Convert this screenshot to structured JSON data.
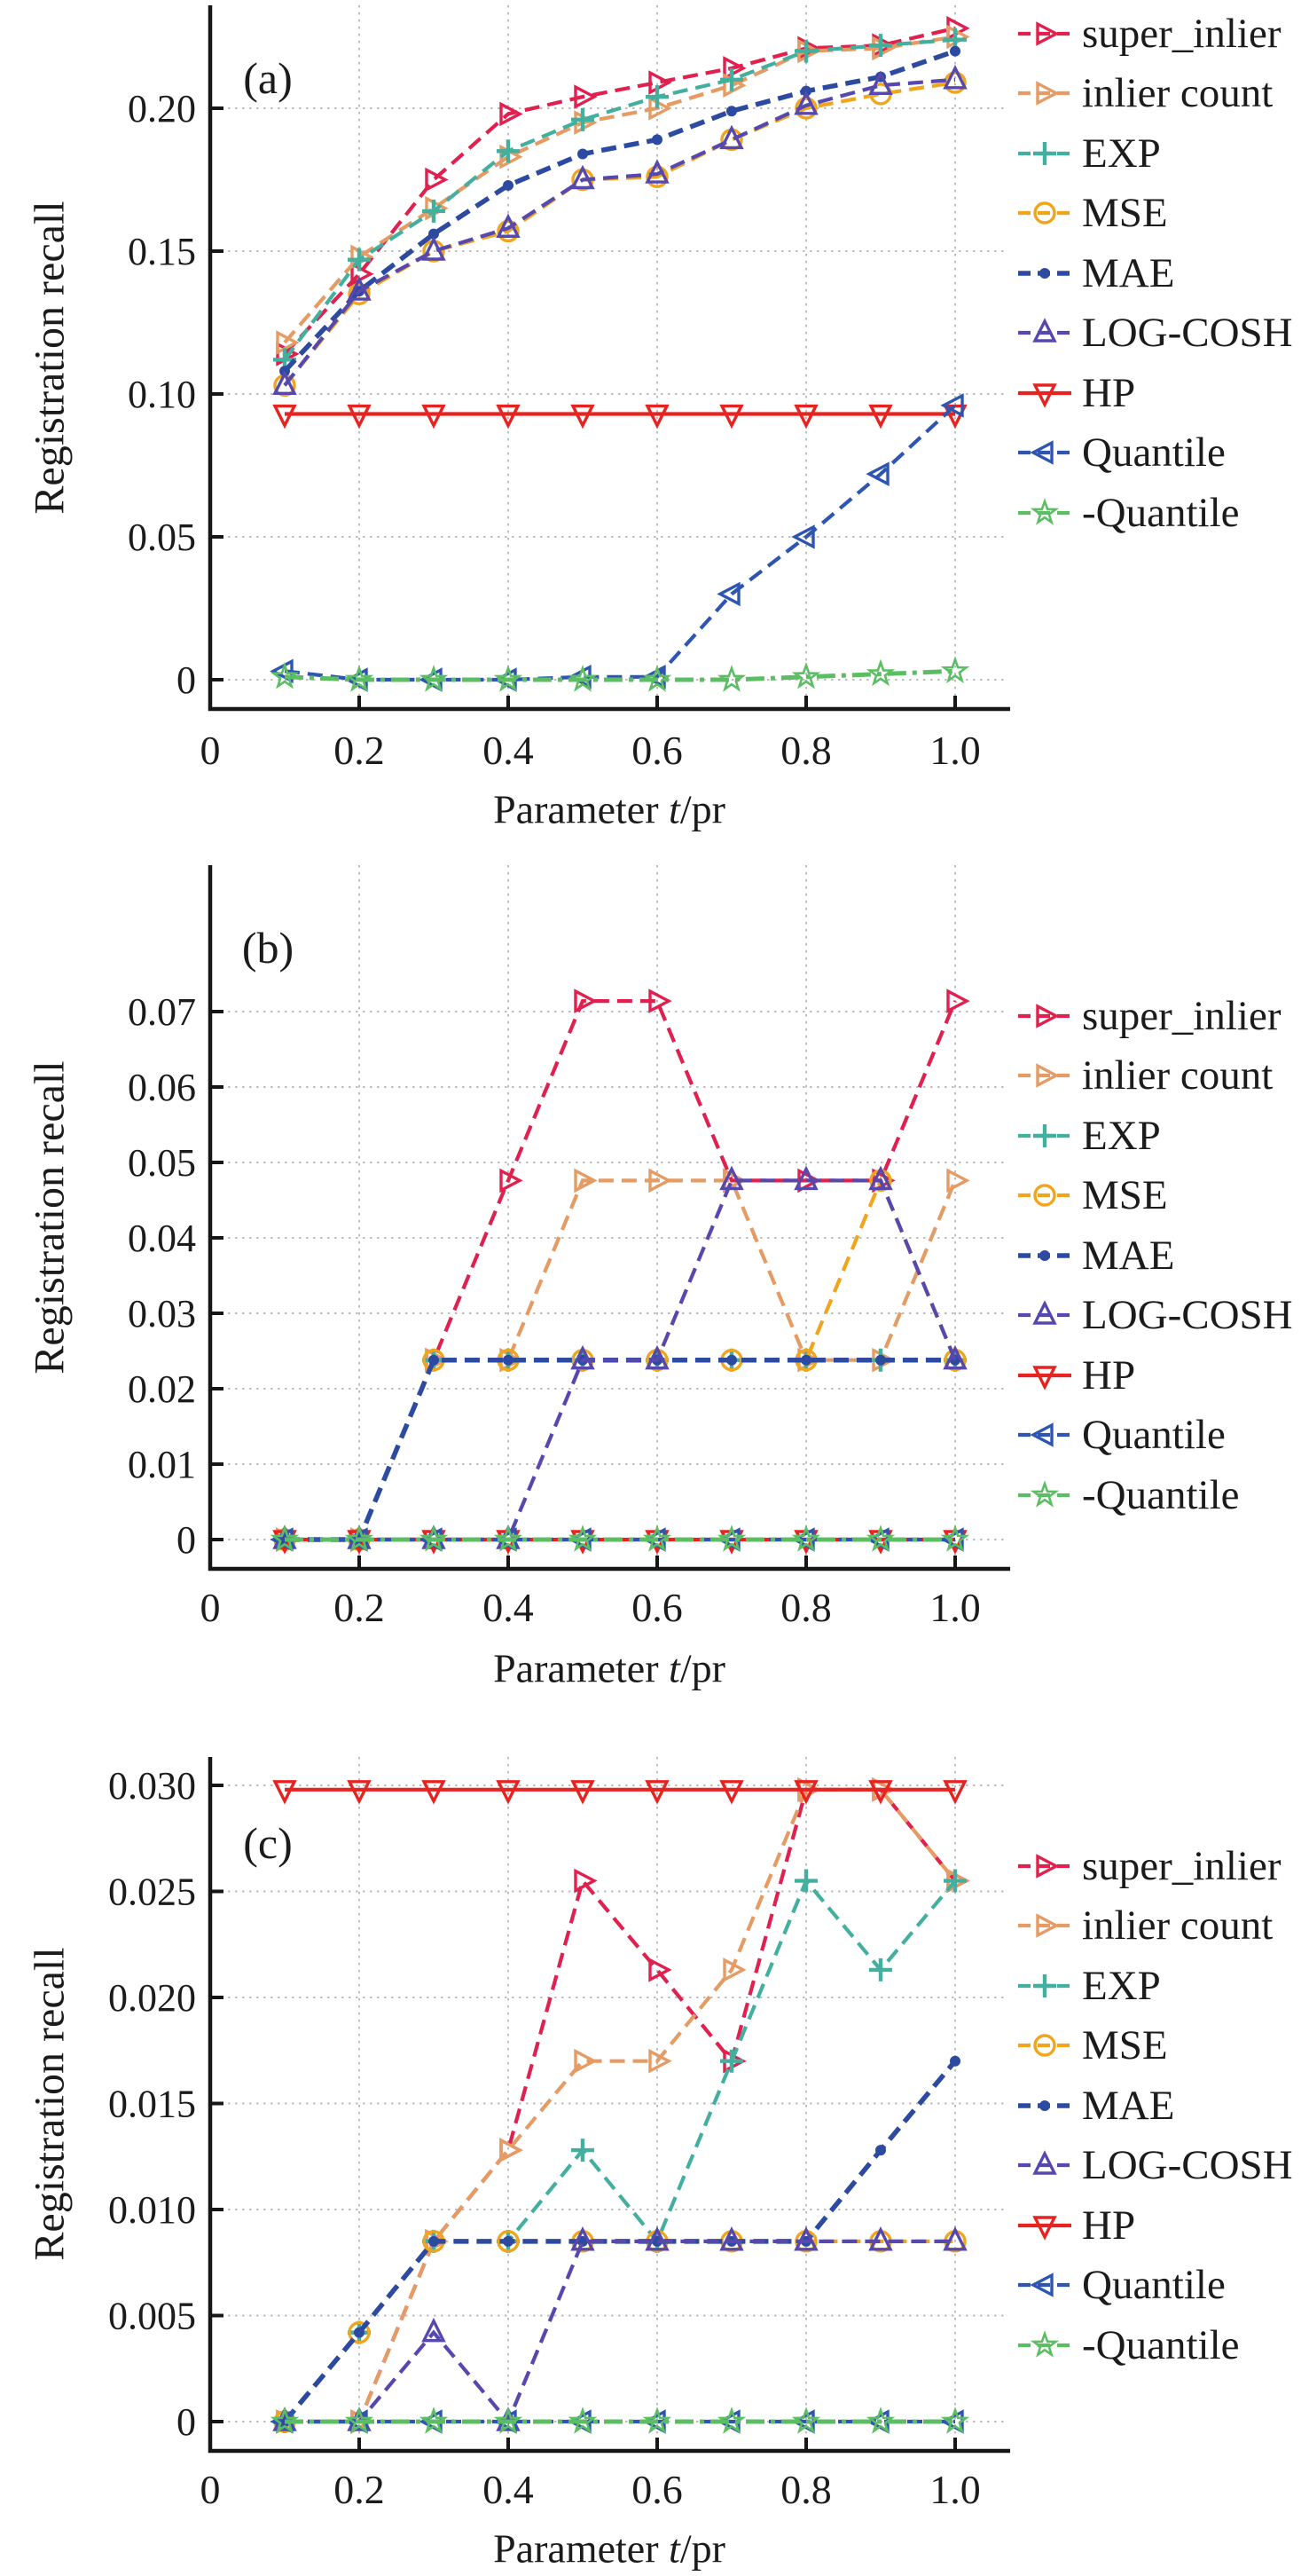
{
  "figure": {
    "ylabel": "Registration recall",
    "xlabel": "Parameter t/pr"
  },
  "chart_data": [
    {
      "type": "line",
      "panel_label": "(a)",
      "ylabel": "Registration recall",
      "xlabel": "Parameter t/pr",
      "xlabel_parts": [
        "Parameter ",
        "t",
        "/pr"
      ],
      "grid": true,
      "legend_position": "right",
      "x": [
        0.1,
        0.2,
        0.3,
        0.4,
        0.5,
        0.6,
        0.7,
        0.8,
        0.9,
        1.0
      ],
      "xticks": [
        0,
        0.2,
        0.4,
        0.6,
        0.8,
        1.0
      ],
      "xtick_labels": [
        "0",
        "0.2",
        "0.4",
        "0.6",
        "0.8",
        "1.0"
      ],
      "ylim": [
        0,
        0.236
      ],
      "yticks": [
        0,
        0.05,
        0.1,
        0.15,
        0.2
      ],
      "ytick_labels": [
        "0",
        "0.05",
        "0.10",
        "0.15",
        "0.20"
      ],
      "series": [
        {
          "name": "super_inlier",
          "color": "#e0204e",
          "marker": "triangle-right",
          "linestyle": "dashed",
          "values": [
            0.114,
            0.142,
            0.175,
            0.198,
            0.204,
            0.209,
            0.214,
            0.221,
            0.222,
            0.228
          ]
        },
        {
          "name": "inlier count",
          "color": "#e59b64",
          "marker": "triangle-right",
          "linestyle": "dashed",
          "values": [
            0.118,
            0.148,
            0.165,
            0.183,
            0.195,
            0.2,
            0.208,
            0.22,
            0.221,
            0.225
          ]
        },
        {
          "name": "EXP",
          "color": "#43af9f",
          "marker": "plus",
          "linestyle": "dashed",
          "values": [
            0.112,
            0.147,
            0.164,
            0.185,
            0.196,
            0.204,
            0.21,
            0.22,
            0.222,
            0.224
          ]
        },
        {
          "name": "MSE",
          "color": "#f0a51d",
          "marker": "circle",
          "linestyle": "dashed",
          "values": [
            0.103,
            0.135,
            0.15,
            0.157,
            0.175,
            0.176,
            0.189,
            0.2,
            0.205,
            0.209
          ]
        },
        {
          "name": "MAE",
          "color": "#2c4aa0",
          "marker": "dot",
          "linestyle": "dashed",
          "values": [
            0.108,
            0.136,
            0.156,
            0.173,
            0.184,
            0.189,
            0.199,
            0.206,
            0.211,
            0.22
          ]
        },
        {
          "name": "LOG-COSH",
          "color": "#5748ae",
          "marker": "triangle-up",
          "linestyle": "dashed",
          "values": [
            0.103,
            0.136,
            0.15,
            0.158,
            0.175,
            0.177,
            0.189,
            0.201,
            0.208,
            0.21
          ]
        },
        {
          "name": "HP",
          "color": "#e62320",
          "marker": "triangle-down",
          "linestyle": "solid",
          "values": [
            0.093,
            0.093,
            0.093,
            0.093,
            0.093,
            0.093,
            0.093,
            0.093,
            0.093,
            0.093
          ]
        },
        {
          "name": "Quantile",
          "color": "#2e56b1",
          "marker": "triangle-left",
          "linestyle": "dashed",
          "values": [
            0.003,
            0.0,
            0.0,
            0.0,
            0.001,
            0.001,
            0.03,
            0.05,
            0.072,
            0.096
          ]
        },
        {
          "name": "-Quantile",
          "color": "#5cbe63",
          "marker": "star",
          "linestyle": "dashdot",
          "values": [
            0.001,
            0.0,
            0.0,
            0.0,
            0.0,
            0.0,
            0.0,
            0.001,
            0.002,
            0.003
          ]
        }
      ]
    },
    {
      "type": "line",
      "panel_label": "(b)",
      "ylabel": "Registration recall",
      "xlabel": "Parameter t/pr",
      "xlabel_parts": [
        "Parameter ",
        "t",
        "/pr"
      ],
      "grid": true,
      "legend_position": "right",
      "x": [
        0.1,
        0.2,
        0.3,
        0.4,
        0.5,
        0.6,
        0.7,
        0.8,
        0.9,
        1.0
      ],
      "xticks": [
        0,
        0.2,
        0.4,
        0.6,
        0.8,
        1.0
      ],
      "xtick_labels": [
        "0",
        "0.2",
        "0.4",
        "0.6",
        "0.8",
        "1.0"
      ],
      "ylim": [
        0,
        0.089
      ],
      "yticks": [
        0,
        0.01,
        0.02,
        0.03,
        0.04,
        0.05,
        0.06,
        0.07
      ],
      "ytick_labels": [
        "0",
        "0.01",
        "0.02",
        "0.03",
        "0.04",
        "0.05",
        "0.06",
        "0.07"
      ],
      "series": [
        {
          "name": "super_inlier",
          "color": "#e0204e",
          "marker": "triangle-right",
          "linestyle": "dashed",
          "values": [
            0,
            0,
            0.0238,
            0.0476,
            0.0714,
            0.0714,
            0.0476,
            0.0476,
            0.0476,
            0.0714
          ]
        },
        {
          "name": "inlier count",
          "color": "#e59b64",
          "marker": "triangle-right",
          "linestyle": "dashed",
          "values": [
            0,
            0,
            0.0238,
            0.0238,
            0.0476,
            0.0476,
            0.0476,
            0.0238,
            0.0238,
            0.0476
          ]
        },
        {
          "name": "EXP",
          "color": "#43af9f",
          "marker": "plus",
          "linestyle": "dashed",
          "values": [
            0,
            0,
            0.0238,
            0.0238,
            0.0238,
            0.0238,
            0.0238,
            0.0238,
            0.0238,
            0.0238
          ]
        },
        {
          "name": "MSE",
          "color": "#f0a51d",
          "marker": "circle",
          "linestyle": "dashed",
          "values": [
            0,
            0,
            0.0238,
            0.0238,
            0.0238,
            0.0238,
            0.0238,
            0.0238,
            0.0476,
            0.0238
          ]
        },
        {
          "name": "MAE",
          "color": "#2c4aa0",
          "marker": "dot",
          "linestyle": "dashed",
          "values": [
            0,
            0,
            0.0238,
            0.0238,
            0.0238,
            0.0238,
            0.0238,
            0.0238,
            0.0238,
            0.0238
          ]
        },
        {
          "name": "LOG-COSH",
          "color": "#5748ae",
          "marker": "triangle-up",
          "linestyle": "dashed",
          "values": [
            0,
            0,
            0,
            0,
            0.0238,
            0.0238,
            0.0476,
            0.0476,
            0.0476,
            0.0238
          ]
        },
        {
          "name": "HP",
          "color": "#e62320",
          "marker": "triangle-down",
          "linestyle": "solid",
          "values": [
            0,
            0,
            0,
            0,
            0,
            0,
            0,
            0,
            0,
            0
          ]
        },
        {
          "name": "Quantile",
          "color": "#2e56b1",
          "marker": "triangle-left",
          "linestyle": "dashed",
          "values": [
            0,
            0,
            0,
            0,
            0,
            0,
            0,
            0,
            0,
            0
          ]
        },
        {
          "name": "-Quantile",
          "color": "#5cbe63",
          "marker": "star",
          "linestyle": "dashdot",
          "values": [
            0,
            0,
            0,
            0,
            0,
            0,
            0,
            0,
            0,
            0
          ]
        }
      ]
    },
    {
      "type": "line",
      "panel_label": "(c)",
      "ylabel": "Registration recall",
      "xlabel": "Parameter t/pr",
      "xlabel_parts": [
        "Parameter ",
        "t",
        "/pr"
      ],
      "grid": true,
      "legend_position": "right",
      "x": [
        0.1,
        0.2,
        0.3,
        0.4,
        0.5,
        0.6,
        0.7,
        0.8,
        0.9,
        1.0
      ],
      "xticks": [
        0,
        0.2,
        0.4,
        0.6,
        0.8,
        1.0
      ],
      "xtick_labels": [
        "0",
        "0.2",
        "0.4",
        "0.6",
        "0.8",
        "1.0"
      ],
      "ylim": [
        0,
        0.0313
      ],
      "yticks": [
        0,
        0.005,
        0.01,
        0.015,
        0.02,
        0.025,
        0.03
      ],
      "ytick_labels": [
        "0",
        "0.005",
        "0.010",
        "0.015",
        "0.020",
        "0.025",
        "0.030"
      ],
      "series": [
        {
          "name": "super_inlier",
          "color": "#e0204e",
          "marker": "triangle-right",
          "linestyle": "dashed",
          "values": [
            0,
            0,
            0.0085,
            0.0128,
            0.0255,
            0.0213,
            0.017,
            0.0298,
            0.0298,
            0.0255
          ]
        },
        {
          "name": "inlier count",
          "color": "#e59b64",
          "marker": "triangle-right",
          "linestyle": "dashed",
          "values": [
            0,
            0,
            0.0085,
            0.0128,
            0.017,
            0.017,
            0.0213,
            0.0298,
            0.0298,
            0.0255
          ]
        },
        {
          "name": "EXP",
          "color": "#43af9f",
          "marker": "plus",
          "linestyle": "dashed",
          "values": [
            0,
            0.0042,
            0.0085,
            0.0085,
            0.0128,
            0.0085,
            0.017,
            0.0255,
            0.0213,
            0.0255
          ]
        },
        {
          "name": "MSE",
          "color": "#f0a51d",
          "marker": "circle",
          "linestyle": "dashed",
          "values": [
            0,
            0.0042,
            0.0085,
            0.0085,
            0.0085,
            0.0085,
            0.0085,
            0.0085,
            0.0085,
            0.0085
          ]
        },
        {
          "name": "MAE",
          "color": "#2c4aa0",
          "marker": "dot",
          "linestyle": "dashed",
          "values": [
            0,
            0.0042,
            0.0085,
            0.0085,
            0.0085,
            0.0085,
            0.0085,
            0.0085,
            0.0128,
            0.017
          ]
        },
        {
          "name": "LOG-COSH",
          "color": "#5748ae",
          "marker": "triangle-up",
          "linestyle": "dashed",
          "values": [
            0,
            0,
            0.0042,
            0,
            0.0085,
            0.0085,
            0.0085,
            0.0085,
            0.0085,
            0.0085
          ]
        },
        {
          "name": "HP",
          "color": "#e62320",
          "marker": "triangle-down",
          "linestyle": "solid",
          "values": [
            0.0298,
            0.0298,
            0.0298,
            0.0298,
            0.0298,
            0.0298,
            0.0298,
            0.0298,
            0.0298,
            0.0298
          ]
        },
        {
          "name": "Quantile",
          "color": "#2e56b1",
          "marker": "triangle-left",
          "linestyle": "dashed",
          "values": [
            0,
            0,
            0,
            0,
            0,
            0,
            0,
            0,
            0,
            0
          ]
        },
        {
          "name": "-Quantile",
          "color": "#5cbe63",
          "marker": "star",
          "linestyle": "dashdot",
          "values": [
            0,
            0,
            0,
            0,
            0,
            0,
            0,
            0,
            0,
            0
          ]
        }
      ]
    }
  ]
}
